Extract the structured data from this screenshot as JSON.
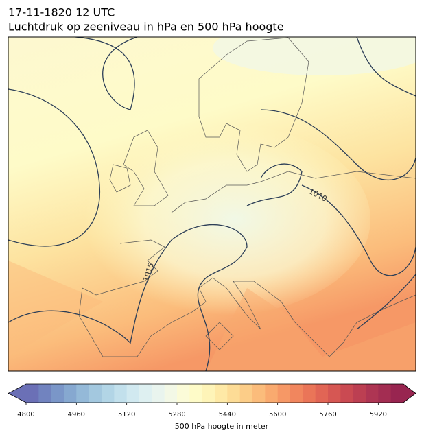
{
  "title": [
    "17-11-1820 12 UTC",
    "Luchtdruk op zeeniveau in hPa en 500 hPa hoogte"
  ],
  "map": {
    "contour_labels": [
      1010,
      1015
    ]
  },
  "colorbar": {
    "label": "500 hPa hoogte in meter",
    "lim": [
      4800,
      6000
    ],
    "ticks": [
      4800,
      4960,
      5120,
      5280,
      5440,
      5600,
      5760,
      5920
    ],
    "colors": [
      "#6b70b6",
      "#7183bf",
      "#7a96c8",
      "#86a8d0",
      "#94b9d8",
      "#a3c8df",
      "#b2d5e6",
      "#c2e0ec",
      "#d1e9f0",
      "#def0f1",
      "#e9f4ee",
      "#f3f8e6",
      "#fbfbd8",
      "#fefbc8",
      "#fef4b8",
      "#fee9a6",
      "#fddc96",
      "#fccd88",
      "#fbbc7b",
      "#f9aa6f",
      "#f69866",
      "#f1865e",
      "#ea7558",
      "#e16555",
      "#d65753",
      "#ca4a52",
      "#bc3f52",
      "#ae3553",
      "#a32d52",
      "#982550"
    ]
  }
}
